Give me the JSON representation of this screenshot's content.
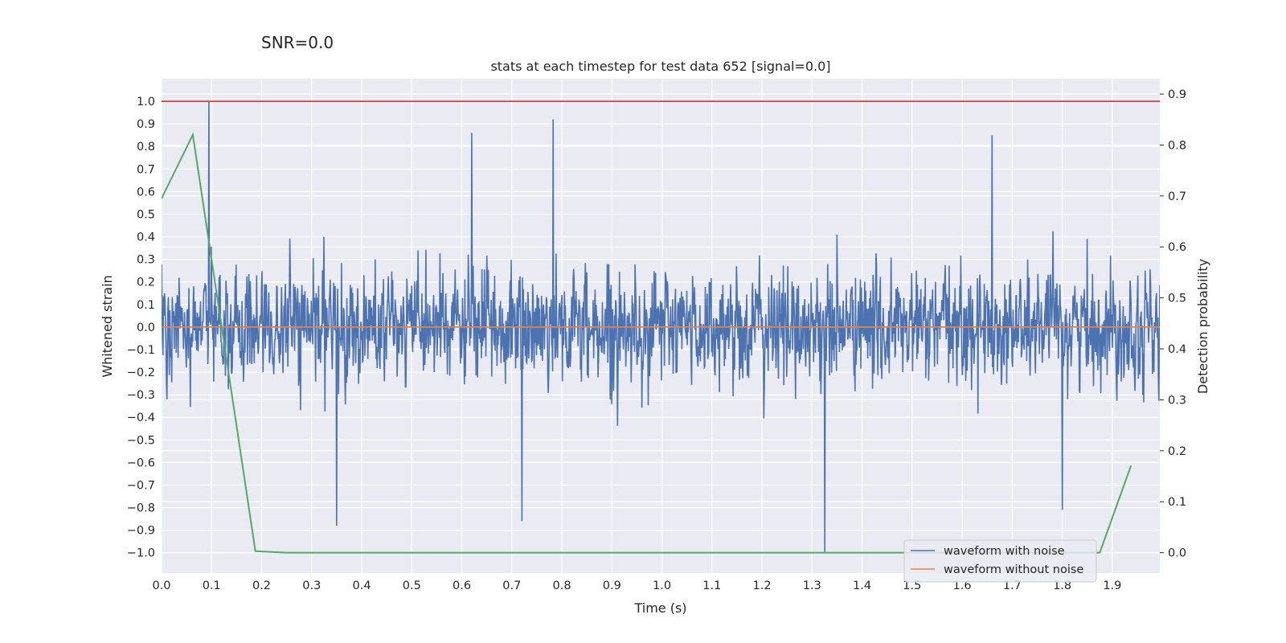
{
  "figure_suptitle": "SNR=0.0",
  "chart_data": {
    "type": "line",
    "title": "stats at each timestep for test data 652 [signal=0.0]",
    "xlabel": "Time (s)",
    "ylabel": "Whitened strain",
    "y2label": "Detection probability",
    "xlim": [
      0.0,
      1.995
    ],
    "ylim": [
      -1.09,
      1.1
    ],
    "y2lim": [
      -0.04,
      0.93
    ],
    "xticks": [
      "0.0",
      "0.1",
      "0.2",
      "0.3",
      "0.4",
      "0.5",
      "0.6",
      "0.7",
      "0.8",
      "0.9",
      "1.0",
      "1.1",
      "1.2",
      "1.3",
      "1.4",
      "1.5",
      "1.6",
      "1.7",
      "1.8",
      "1.9"
    ],
    "yticks": [
      "1.0",
      "0.9",
      "0.8",
      "0.7",
      "0.6",
      "0.5",
      "0.4",
      "0.3",
      "0.2",
      "0.1",
      "0.0",
      "−0.1",
      "−0.2",
      "−0.3",
      "−0.4",
      "−0.5",
      "−0.6",
      "−0.7",
      "−0.8",
      "−0.9",
      "−1.0"
    ],
    "y2ticks": [
      "0.9",
      "0.8",
      "0.7",
      "0.6",
      "0.5",
      "0.4",
      "0.3",
      "0.2",
      "0.1",
      "0.0"
    ],
    "grid": true,
    "legend_position": "lower-right",
    "series": [
      {
        "name": "waveform with noise",
        "color": "#4c72b0",
        "axis": "left",
        "kind": "noise",
        "note": "dense whitened noise, ~2048 samples, amplitude mostly within ±0.6, peak 1.0 at t≈0.095, min −1.0 at t≈1.325"
      },
      {
        "name": "waveform without noise",
        "color": "#dd8452",
        "axis": "left",
        "x": [
          0.0,
          1.995
        ],
        "y": [
          0.0,
          0.0
        ]
      },
      {
        "name": "",
        "color": "#55a868",
        "axis": "right",
        "x": [
          0.0,
          0.0625,
          0.1875,
          0.25,
          1.875,
          1.9375
        ],
        "y": [
          0.695,
          0.82,
          0.003,
          0.0,
          0.0,
          0.171
        ]
      },
      {
        "name": "",
        "color": "#c44e52",
        "axis": "left",
        "x": [
          0.0,
          1.995
        ],
        "y": [
          1.0,
          1.0
        ]
      }
    ]
  }
}
